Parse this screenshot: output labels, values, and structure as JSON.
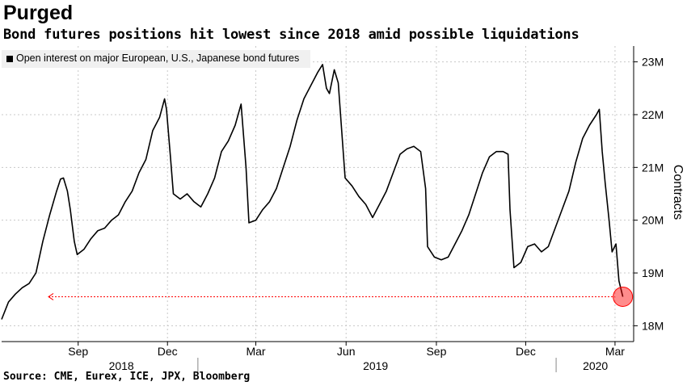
{
  "title": "Purged",
  "subtitle": "Bond futures positions hit lowest since 2018 amid possible liquidations",
  "source": "Source: CME, Eurex, ICE, JPX, Bloomberg",
  "chart_data": {
    "type": "line",
    "series": [
      {
        "name": "Open interest on major European, U.S., Japanese bond futures",
        "color": "#000000",
        "points": [
          [
            "2018-06-15",
            18.12
          ],
          [
            "2018-06-22",
            18.45
          ],
          [
            "2018-06-29",
            18.6
          ],
          [
            "2018-07-06",
            18.72
          ],
          [
            "2018-07-13",
            18.8
          ],
          [
            "2018-07-20",
            19.0
          ],
          [
            "2018-07-27",
            19.6
          ],
          [
            "2018-08-03",
            20.1
          ],
          [
            "2018-08-10",
            20.55
          ],
          [
            "2018-08-14",
            20.78
          ],
          [
            "2018-08-17",
            20.8
          ],
          [
            "2018-08-21",
            20.55
          ],
          [
            "2018-08-24",
            20.2
          ],
          [
            "2018-08-28",
            19.6
          ],
          [
            "2018-08-31",
            19.35
          ],
          [
            "2018-09-07",
            19.45
          ],
          [
            "2018-09-14",
            19.65
          ],
          [
            "2018-09-21",
            19.8
          ],
          [
            "2018-09-28",
            19.85
          ],
          [
            "2018-10-05",
            20.0
          ],
          [
            "2018-10-12",
            20.1
          ],
          [
            "2018-10-19",
            20.35
          ],
          [
            "2018-10-26",
            20.55
          ],
          [
            "2018-11-02",
            20.9
          ],
          [
            "2018-11-09",
            21.15
          ],
          [
            "2018-11-16",
            21.7
          ],
          [
            "2018-11-23",
            21.95
          ],
          [
            "2018-11-28",
            22.3
          ],
          [
            "2018-11-30",
            22.1
          ],
          [
            "2018-12-04",
            21.2
          ],
          [
            "2018-12-07",
            20.5
          ],
          [
            "2018-12-14",
            20.4
          ],
          [
            "2018-12-21",
            20.5
          ],
          [
            "2018-12-28",
            20.35
          ],
          [
            "2019-01-04",
            20.25
          ],
          [
            "2019-01-11",
            20.5
          ],
          [
            "2019-01-18",
            20.8
          ],
          [
            "2019-01-25",
            21.3
          ],
          [
            "2019-02-01",
            21.5
          ],
          [
            "2019-02-08",
            21.8
          ],
          [
            "2019-02-14",
            22.2
          ],
          [
            "2019-02-19",
            21.0
          ],
          [
            "2019-02-22",
            19.95
          ],
          [
            "2019-03-01",
            20.0
          ],
          [
            "2019-03-08",
            20.2
          ],
          [
            "2019-03-15",
            20.35
          ],
          [
            "2019-03-22",
            20.6
          ],
          [
            "2019-03-29",
            21.0
          ],
          [
            "2019-04-05",
            21.4
          ],
          [
            "2019-04-12",
            21.9
          ],
          [
            "2019-04-19",
            22.3
          ],
          [
            "2019-04-26",
            22.55
          ],
          [
            "2019-05-03",
            22.8
          ],
          [
            "2019-05-08",
            22.95
          ],
          [
            "2019-05-12",
            22.5
          ],
          [
            "2019-05-15",
            22.4
          ],
          [
            "2019-05-20",
            22.85
          ],
          [
            "2019-05-24",
            22.6
          ],
          [
            "2019-05-31",
            20.8
          ],
          [
            "2019-06-07",
            20.65
          ],
          [
            "2019-06-14",
            20.45
          ],
          [
            "2019-06-21",
            20.3
          ],
          [
            "2019-06-28",
            20.05
          ],
          [
            "2019-07-05",
            20.3
          ],
          [
            "2019-07-12",
            20.55
          ],
          [
            "2019-07-19",
            20.9
          ],
          [
            "2019-07-26",
            21.25
          ],
          [
            "2019-08-02",
            21.35
          ],
          [
            "2019-08-09",
            21.4
          ],
          [
            "2019-08-16",
            21.3
          ],
          [
            "2019-08-21",
            20.6
          ],
          [
            "2019-08-23",
            19.5
          ],
          [
            "2019-08-30",
            19.3
          ],
          [
            "2019-09-06",
            19.25
          ],
          [
            "2019-09-13",
            19.3
          ],
          [
            "2019-09-20",
            19.55
          ],
          [
            "2019-09-27",
            19.8
          ],
          [
            "2019-10-04",
            20.1
          ],
          [
            "2019-10-11",
            20.5
          ],
          [
            "2019-10-18",
            20.9
          ],
          [
            "2019-10-25",
            21.2
          ],
          [
            "2019-11-01",
            21.3
          ],
          [
            "2019-11-08",
            21.3
          ],
          [
            "2019-11-13",
            21.25
          ],
          [
            "2019-11-15",
            20.2
          ],
          [
            "2019-11-19",
            19.1
          ],
          [
            "2019-11-26",
            19.2
          ],
          [
            "2019-12-03",
            19.5
          ],
          [
            "2019-12-10",
            19.55
          ],
          [
            "2019-12-17",
            19.4
          ],
          [
            "2019-12-24",
            19.5
          ],
          [
            "2019-12-31",
            19.85
          ],
          [
            "2020-01-07",
            20.2
          ],
          [
            "2020-01-14",
            20.55
          ],
          [
            "2020-01-21",
            21.1
          ],
          [
            "2020-01-28",
            21.55
          ],
          [
            "2020-02-04",
            21.8
          ],
          [
            "2020-02-11",
            22.0
          ],
          [
            "2020-02-14",
            22.1
          ],
          [
            "2020-02-17",
            21.3
          ],
          [
            "2020-02-20",
            20.7
          ],
          [
            "2020-02-24",
            20.0
          ],
          [
            "2020-02-27",
            19.4
          ],
          [
            "2020-03-02",
            19.55
          ],
          [
            "2020-03-05",
            18.85
          ],
          [
            "2020-03-09",
            18.55
          ]
        ]
      }
    ],
    "highlight": {
      "date": "2020-03-09",
      "value": 18.55,
      "color": "#ff0000"
    },
    "xlim": [
      "2018-06-15",
      "2020-03-20"
    ],
    "x_ticks": [
      {
        "date": "2018-09-01",
        "label": "Sep"
      },
      {
        "date": "2018-12-01",
        "label": "Dec"
      },
      {
        "date": "2019-03-01",
        "label": "Mar"
      },
      {
        "date": "2019-06-01",
        "label": "Jun"
      },
      {
        "date": "2019-09-01",
        "label": "Sep"
      },
      {
        "date": "2019-12-01",
        "label": "Dec"
      },
      {
        "date": "2020-03-01",
        "label": "Mar"
      }
    ],
    "x_years": [
      {
        "date": "2018-10-15",
        "label": "2018"
      },
      {
        "date": "2019-07-01",
        "label": "2019"
      },
      {
        "date": "2020-02-10",
        "label": "2020"
      }
    ],
    "year_dividers": [
      "2019-01-01",
      "2020-01-01"
    ],
    "ylim": [
      17.7,
      23.3
    ],
    "y_ticks": [
      {
        "value": 18,
        "label": "18M"
      },
      {
        "value": 19,
        "label": "19M"
      },
      {
        "value": 20,
        "label": "20M"
      },
      {
        "value": 21,
        "label": "21M"
      },
      {
        "value": 22,
        "label": "22M"
      },
      {
        "value": 23,
        "label": "23M"
      }
    ],
    "ylabel": "Contracts",
    "grid": true,
    "legend": "top-left"
  }
}
